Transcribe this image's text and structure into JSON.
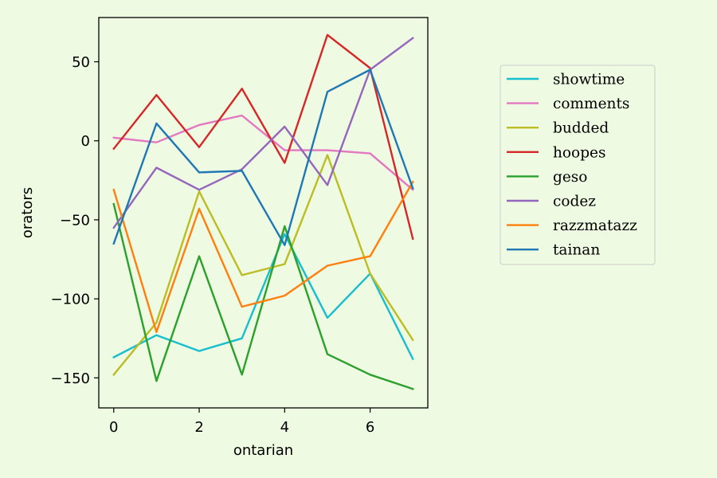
{
  "chart_data": {
    "type": "line",
    "title": "",
    "xlabel": "ontarian",
    "ylabel": "orators",
    "xlim": [
      -0.35,
      7.35
    ],
    "ylim": [
      -169,
      78
    ],
    "x": [
      0,
      1,
      2,
      3,
      4,
      5,
      6,
      7
    ],
    "xticks": [
      0,
      2,
      4,
      6
    ],
    "xtick_labels": [
      "0",
      "2",
      "4",
      "6"
    ],
    "yticks": [
      50,
      0,
      -50,
      -100,
      -150
    ],
    "ytick_labels": [
      "50",
      "0",
      "−50",
      "−100",
      "−150"
    ],
    "grid": false,
    "legend_position": "right, outside plot area",
    "series": [
      {
        "name": "showtime",
        "color": "#17becf",
        "values": [
          -137,
          -123,
          -133,
          -125,
          -59,
          -112,
          -84,
          -138
        ]
      },
      {
        "name": "comments",
        "color": "#e377c2",
        "values": [
          2,
          -1,
          10,
          16,
          -6,
          -6,
          -8,
          -31
        ]
      },
      {
        "name": "budded",
        "color": "#bcbd22",
        "values": [
          -148,
          -115,
          -32,
          -85,
          -78,
          -9,
          -84,
          -126
        ]
      },
      {
        "name": "hoopes",
        "color": "#d62728",
        "values": [
          -5,
          29,
          -4,
          33,
          -14,
          67,
          46,
          -62
        ]
      },
      {
        "name": "geso",
        "color": "#2ca02c",
        "values": [
          -40,
          -152,
          -73,
          -148,
          -54,
          -135,
          -148,
          -157
        ]
      },
      {
        "name": "codez",
        "color": "#9467bd",
        "values": [
          -55,
          -17,
          -31,
          -18,
          9,
          -28,
          45,
          65
        ]
      },
      {
        "name": "razzmatazz",
        "color": "#ff7f0e",
        "values": [
          -31,
          -121,
          -43,
          -105,
          -98,
          -79,
          -73,
          -26
        ]
      },
      {
        "name": "tainan",
        "color": "#1f77b4",
        "values": [
          -65,
          11,
          -20,
          -19,
          -66,
          31,
          45,
          -30
        ]
      }
    ]
  }
}
